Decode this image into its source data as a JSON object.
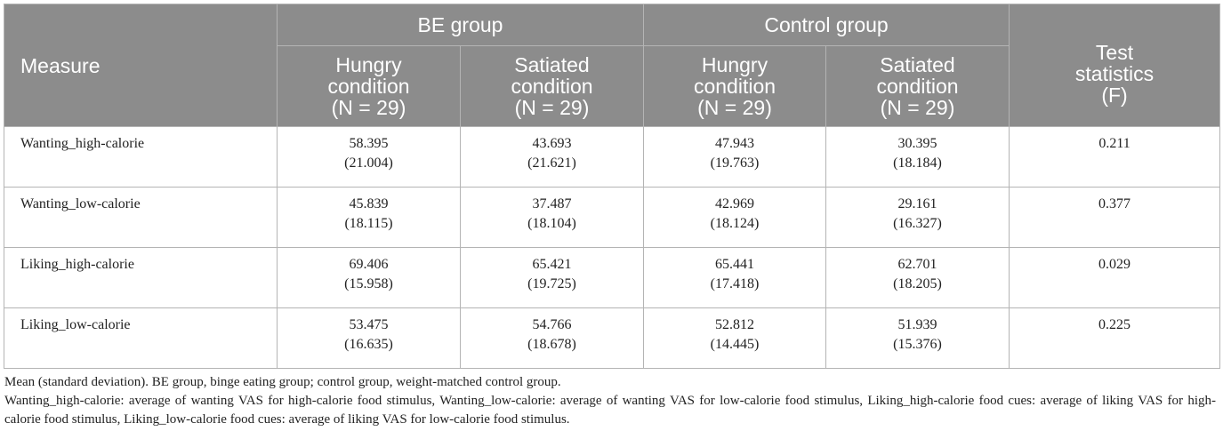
{
  "table": {
    "header": {
      "measure": "Measure",
      "groups": [
        "BE group",
        "Control group"
      ],
      "conditions": [
        {
          "line1": "Hungry",
          "line2": "condition",
          "n": "(N = 29)"
        },
        {
          "line1": "Satiated",
          "line2": "condition",
          "n": "(N = 29)"
        },
        {
          "line1": "Hungry",
          "line2": "condition",
          "n": "(N = 29)"
        },
        {
          "line1": "Satiated",
          "line2": "condition",
          "n": "(N = 29)"
        }
      ],
      "test": {
        "line1": "Test",
        "line2": "statistics",
        "line3": "(F)"
      }
    },
    "rows": [
      {
        "label": "Wanting_high-calorie",
        "cells": [
          {
            "mean": "58.395",
            "sd": "(21.004)"
          },
          {
            "mean": "43.693",
            "sd": "(21.621)"
          },
          {
            "mean": "47.943",
            "sd": "(19.763)"
          },
          {
            "mean": "30.395",
            "sd": "(18.184)"
          }
        ],
        "f": "0.211"
      },
      {
        "label": "Wanting_low-calorie",
        "cells": [
          {
            "mean": "45.839",
            "sd": "(18.115)"
          },
          {
            "mean": "37.487",
            "sd": "(18.104)"
          },
          {
            "mean": "42.969",
            "sd": "(18.124)"
          },
          {
            "mean": "29.161",
            "sd": "(16.327)"
          }
        ],
        "f": "0.377"
      },
      {
        "label": "Liking_high-calorie",
        "cells": [
          {
            "mean": "69.406",
            "sd": "(15.958)"
          },
          {
            "mean": "65.421",
            "sd": "(19.725)"
          },
          {
            "mean": "65.441",
            "sd": "(17.418)"
          },
          {
            "mean": "62.701",
            "sd": "(18.205)"
          }
        ],
        "f": "0.029"
      },
      {
        "label": "Liking_low-calorie",
        "cells": [
          {
            "mean": "53.475",
            "sd": "(16.635)"
          },
          {
            "mean": "54.766",
            "sd": "(18.678)"
          },
          {
            "mean": "52.812",
            "sd": "(14.445)"
          },
          {
            "mean": "51.939",
            "sd": "(15.376)"
          }
        ],
        "f": "0.225"
      }
    ]
  },
  "notes": {
    "line1": "Mean (standard deviation). BE group, binge eating group; control group, weight-matched control group.",
    "line2": "Wanting_high-calorie: average of wanting VAS for high-calorie food stimulus, Wanting_low-calorie: average of wanting VAS for low-calorie food stimulus, Liking_high-calorie food cues: average of liking VAS for high-calorie food stimulus, Liking_low-calorie food cues: average of liking VAS for low-calorie food stimulus."
  }
}
